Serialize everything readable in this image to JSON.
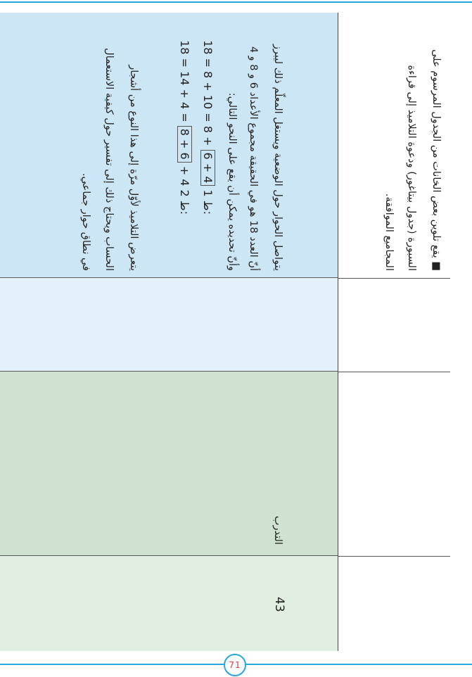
{
  "header": {
    "lines": [
      "■ يقع تلوين بعض الخانات من الجدول المرسوم على",
      "السبورة (جدول بيتاغور) ودعوة التلاميذ إلى قراءة",
      "المجاميع الموافقة."
    ]
  },
  "body": {
    "intro": [
      "يتواصل الحوار حول الوضعية ويستغل المعلّم ذلك ليبرز",
      "أنّ العدد 18 هو في الحقيقة مجموع الأعداد 6 و 8 و 4",
      "وأنّ تحديده يمكن أن يقع على النحو التالي:"
    ],
    "equations": [
      {
        "label": "ط 1:",
        "before": "18 = 8 + 10 = 8 +",
        "boxed": "6 + 4",
        "after": ""
      },
      {
        "label": "ط 2:",
        "before": "18 = 14 + 4 =",
        "boxed": "8 + 6",
        "after": "+ 4"
      }
    ],
    "outro": [
      "يتعرض التلاميذ لأوّل مرّة إلى هذا النوع من أشجار",
      "الحساب ويحتاج ذلك إلى تفسير حول كيفية الاستعمال",
      "في نطاق حوار جماعي."
    ]
  },
  "section": {
    "label": "التدرب",
    "number": "43"
  },
  "footer": {
    "page_number": "71"
  }
}
